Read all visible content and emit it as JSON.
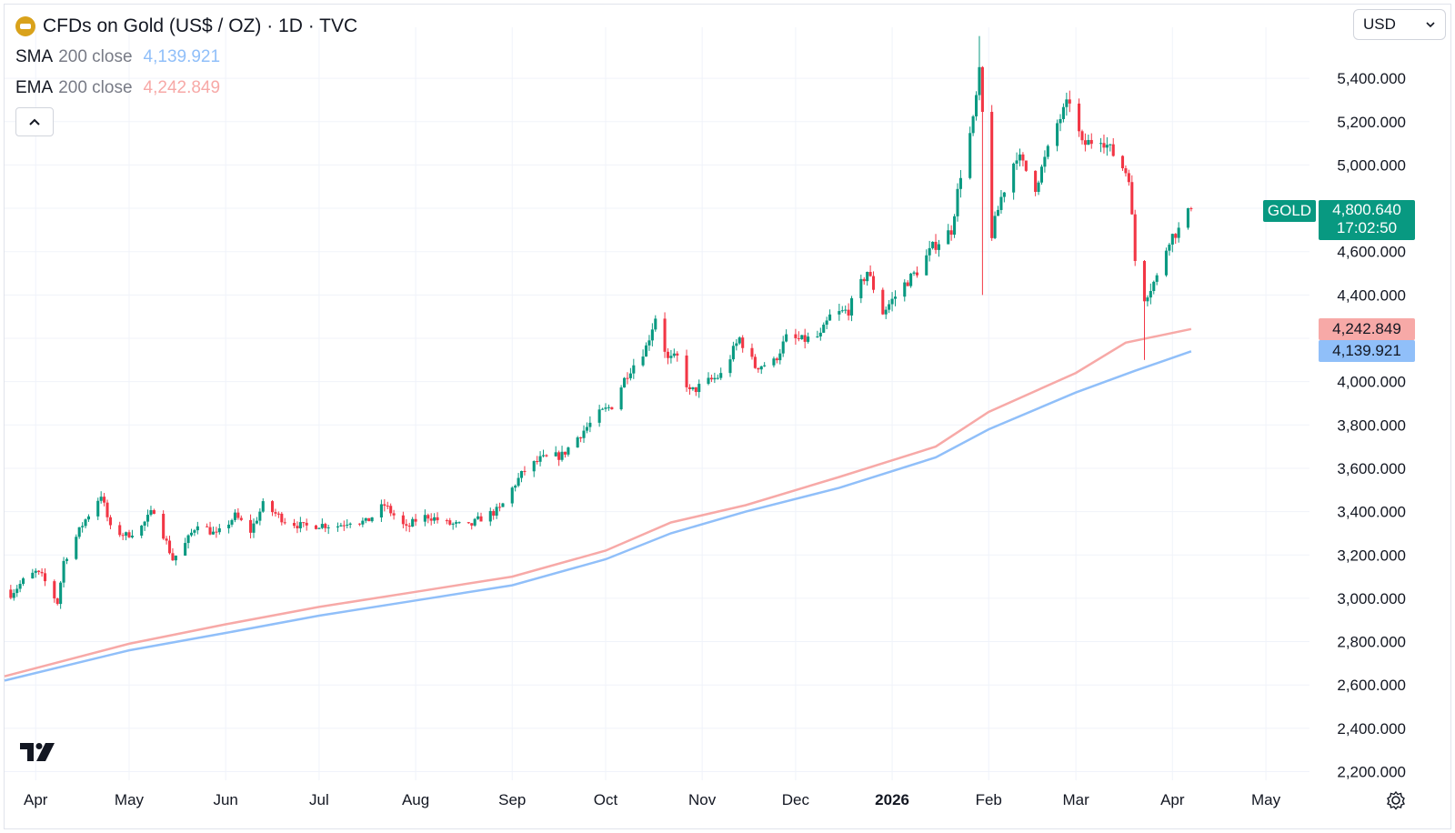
{
  "header": {
    "title": "CFDs on Gold (US$ / OZ) · 1D · TVC",
    "currency": "USD"
  },
  "legend": {
    "sma": {
      "name": "SMA",
      "params": "200 close",
      "value": "4,139.921",
      "color": "#90bff9"
    },
    "ema": {
      "name": "EMA",
      "params": "200 close",
      "value": "4,242.849",
      "color": "#f7a9a7"
    }
  },
  "last_price": {
    "symbol": "GOLD",
    "value": "4,800.640",
    "countdown": "17:02:50",
    "color": "#089981"
  },
  "icons": {
    "coin": "gold-coin-icon",
    "collapse": "chevron-up-icon",
    "currency_dropdown": "chevron-down-icon",
    "logo": "tradingview-logo-icon",
    "settings": "gear-icon"
  },
  "colors": {
    "up": "#089981",
    "down": "#f23645",
    "grid": "#f0f3fa"
  },
  "chart_data": {
    "type": "candlestick",
    "title": "CFDs on Gold (US$ / OZ) · 1D · TVC",
    "y_axis": {
      "ticks": [
        "2,200.000",
        "2,400.000",
        "2,600.000",
        "2,800.000",
        "3,000.000",
        "3,200.000",
        "3,400.000",
        "3,600.000",
        "3,800.000",
        "4,000.000",
        "4,200.000",
        "4,400.000",
        "4,600.000",
        "4,800.000",
        "5,000.000",
        "5,200.000",
        "5,400.000"
      ],
      "tick_values": [
        2200,
        2400,
        2600,
        2800,
        3000,
        3200,
        3400,
        3600,
        3800,
        4000,
        4200,
        4400,
        4600,
        4800,
        5000,
        5200,
        5400
      ],
      "range": [
        2180,
        5620
      ]
    },
    "x_axis": {
      "labels": [
        "Apr",
        "May",
        "Jun",
        "Jul",
        "Aug",
        "Sep",
        "Oct",
        "Nov",
        "Dec",
        "2026",
        "Feb",
        "Mar",
        "Apr",
        "May"
      ],
      "label_dates": [
        "2025-04-01",
        "2025-05-01",
        "2025-06-01",
        "2025-07-01",
        "2025-08-01",
        "2025-09-01",
        "2025-10-01",
        "2025-11-01",
        "2025-12-01",
        "2026-01-01",
        "2026-02-01",
        "2026-03-01",
        "2026-04-01",
        "2026-05-01"
      ],
      "bold": [
        "2026"
      ],
      "range": [
        "2025-03-22",
        "2026-05-15"
      ]
    },
    "close_path": [
      [
        "2025-03-24",
        3020
      ],
      [
        "2025-03-28",
        3080
      ],
      [
        "2025-04-01",
        3120
      ],
      [
        "2025-04-03",
        3100
      ],
      [
        "2025-04-08",
        2980
      ],
      [
        "2025-04-10",
        3170
      ],
      [
        "2025-04-16",
        3340
      ],
      [
        "2025-04-22",
        3480
      ],
      [
        "2025-04-25",
        3320
      ],
      [
        "2025-04-30",
        3290
      ],
      [
        "2025-05-05",
        3330
      ],
      [
        "2025-05-09",
        3410
      ],
      [
        "2025-05-15",
        3180
      ],
      [
        "2025-05-19",
        3250
      ],
      [
        "2025-05-23",
        3350
      ],
      [
        "2025-05-29",
        3290
      ],
      [
        "2025-06-04",
        3380
      ],
      [
        "2025-06-09",
        3310
      ],
      [
        "2025-06-13",
        3430
      ],
      [
        "2025-06-17",
        3390
      ],
      [
        "2025-06-20",
        3360
      ],
      [
        "2025-06-26",
        3330
      ],
      [
        "2025-07-01",
        3340
      ],
      [
        "2025-07-07",
        3335
      ],
      [
        "2025-07-11",
        3360
      ],
      [
        "2025-07-16",
        3350
      ],
      [
        "2025-07-22",
        3430
      ],
      [
        "2025-07-29",
        3320
      ],
      [
        "2025-08-01",
        3360
      ],
      [
        "2025-08-05",
        3380
      ],
      [
        "2025-08-11",
        3345
      ],
      [
        "2025-08-18",
        3330
      ],
      [
        "2025-08-22",
        3370
      ],
      [
        "2025-08-28",
        3410
      ],
      [
        "2025-09-02",
        3530
      ],
      [
        "2025-09-05",
        3590
      ],
      [
        "2025-09-10",
        3640
      ],
      [
        "2025-09-17",
        3660
      ],
      [
        "2025-09-23",
        3760
      ],
      [
        "2025-09-29",
        3850
      ],
      [
        "2025-10-03",
        3890
      ],
      [
        "2025-10-08",
        4040
      ],
      [
        "2025-10-14",
        4160
      ],
      [
        "2025-10-17",
        4300
      ],
      [
        "2025-10-21",
        4100
      ],
      [
        "2025-10-24",
        4110
      ],
      [
        "2025-10-28",
        3950
      ],
      [
        "2025-11-03",
        4000
      ],
      [
        "2025-11-07",
        4030
      ],
      [
        "2025-11-13",
        4200
      ],
      [
        "2025-11-18",
        4070
      ],
      [
        "2025-11-24",
        4090
      ],
      [
        "2025-11-28",
        4200
      ],
      [
        "2025-12-03",
        4190
      ],
      [
        "2025-12-09",
        4210
      ],
      [
        "2025-12-12",
        4300
      ],
      [
        "2025-12-18",
        4330
      ],
      [
        "2025-12-24",
        4510
      ],
      [
        "2025-12-29",
        4320
      ],
      [
        "2026-01-05",
        4450
      ],
      [
        "2026-01-09",
        4510
      ],
      [
        "2026-01-14",
        4620
      ],
      [
        "2026-01-20",
        4700
      ],
      [
        "2026-01-23",
        4960
      ],
      [
        "2026-01-27",
        5200
      ],
      [
        "2026-01-29",
        5420
      ],
      [
        "2026-02-02",
        4680
      ],
      [
        "2026-02-05",
        4850
      ],
      [
        "2026-02-10",
        5050
      ],
      [
        "2026-02-16",
        4900
      ],
      [
        "2026-02-23",
        5190
      ],
      [
        "2026-02-27",
        5300
      ],
      [
        "2026-03-03",
        5090
      ],
      [
        "2026-03-09",
        5130
      ],
      [
        "2026-03-13",
        5050
      ],
      [
        "2026-03-18",
        4950
      ],
      [
        "2026-03-20",
        4560
      ],
      [
        "2026-03-23",
        4390
      ],
      [
        "2026-03-27",
        4480
      ],
      [
        "2026-03-31",
        4660
      ],
      [
        "2026-04-03",
        4700
      ],
      [
        "2026-04-07",
        4800
      ]
    ],
    "candle_range": [
      "2025-03-24",
      "2026-04-07"
    ],
    "first_open": 3040,
    "extremes": [
      {
        "date": "2026-01-29",
        "high": 5595,
        "low": 5300
      },
      {
        "date": "2026-01-30",
        "high": 5450,
        "low": 4400
      },
      {
        "date": "2026-03-23",
        "high": 4480,
        "low": 4100
      }
    ],
    "series": [
      {
        "name": "SMA 200 close",
        "color": "#90bff9",
        "points": [
          [
            "2025-03-22",
            2620
          ],
          [
            "2025-05-01",
            2760
          ],
          [
            "2025-06-01",
            2840
          ],
          [
            "2025-07-01",
            2920
          ],
          [
            "2025-08-01",
            2990
          ],
          [
            "2025-09-01",
            3060
          ],
          [
            "2025-10-01",
            3180
          ],
          [
            "2025-10-22",
            3300
          ],
          [
            "2025-11-15",
            3400
          ],
          [
            "2025-12-15",
            3510
          ],
          [
            "2026-01-15",
            3650
          ],
          [
            "2026-02-01",
            3780
          ],
          [
            "2026-03-01",
            3950
          ],
          [
            "2026-03-20",
            4050
          ],
          [
            "2026-04-07",
            4140
          ]
        ]
      },
      {
        "name": "EMA 200 close",
        "color": "#f7a9a7",
        "points": [
          [
            "2025-03-22",
            2640
          ],
          [
            "2025-05-01",
            2790
          ],
          [
            "2025-06-01",
            2880
          ],
          [
            "2025-07-01",
            2960
          ],
          [
            "2025-08-01",
            3030
          ],
          [
            "2025-09-01",
            3100
          ],
          [
            "2025-10-01",
            3220
          ],
          [
            "2025-10-22",
            3350
          ],
          [
            "2025-11-15",
            3430
          ],
          [
            "2025-12-15",
            3560
          ],
          [
            "2026-01-15",
            3700
          ],
          [
            "2026-02-01",
            3860
          ],
          [
            "2026-03-01",
            4040
          ],
          [
            "2026-03-17",
            4180
          ],
          [
            "2026-04-07",
            4243
          ]
        ]
      }
    ],
    "grid": true
  }
}
